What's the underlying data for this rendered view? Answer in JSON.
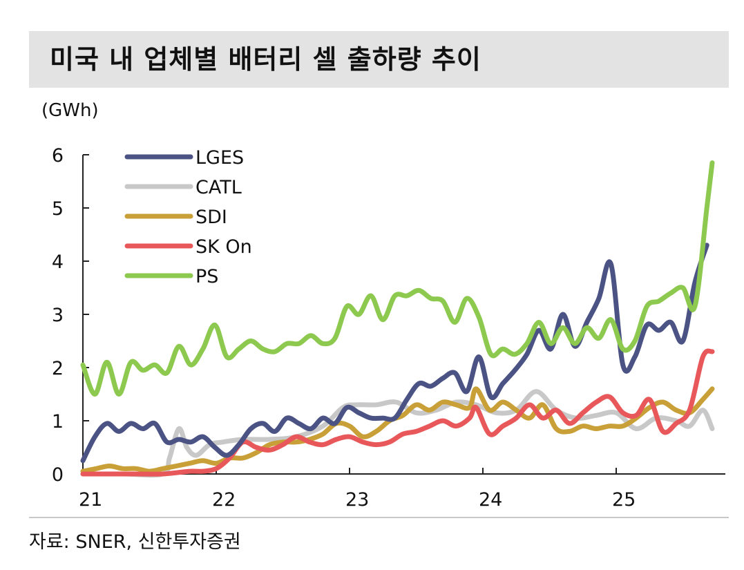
{
  "header": {
    "title": "미국 내 업체별 배터리 셀 출하량 추이"
  },
  "footer": {
    "source": "자료: SNER, 신한투자증권"
  },
  "chart_data": {
    "type": "line",
    "title": "미국 내 업체별 배터리 셀 출하량 추이",
    "unit_label": "(GWh)",
    "xlabel": "",
    "ylabel": "(GWh)",
    "ylim": [
      0,
      6
    ],
    "yticks": [
      "0",
      "1",
      "2",
      "3",
      "4",
      "5",
      "6"
    ],
    "xlim": [
      21,
      25.85
    ],
    "xticks": [
      "21",
      "22",
      "23",
      "24",
      "25"
    ],
    "grid": false,
    "legend_position": "top-left",
    "colors": {
      "LGES": "#4a5384",
      "CATL": "#c8c8c8",
      "SDI": "#c9a038",
      "SK On": "#e8585a",
      "PS": "#8cc94e"
    },
    "series": [
      {
        "name": "LGES",
        "x": [
          21.0,
          21.09,
          21.18,
          21.27,
          21.36,
          21.45,
          21.54,
          21.63,
          21.72,
          21.81,
          21.9,
          21.99,
          22.08,
          22.17,
          22.26,
          22.35,
          22.44,
          22.53,
          22.62,
          22.71,
          22.8,
          22.89,
          22.98,
          23.07,
          23.16,
          23.25,
          23.34,
          23.43,
          23.52,
          23.61,
          23.7,
          23.79,
          23.88,
          23.97,
          24.06,
          24.15,
          24.24,
          24.33,
          24.42,
          24.51,
          24.6,
          24.69,
          24.78,
          24.87,
          24.96,
          25.05,
          25.14,
          25.23,
          25.32,
          25.41,
          25.5,
          25.59,
          25.68
        ],
        "values": [
          0.25,
          0.7,
          0.95,
          0.8,
          0.95,
          0.85,
          0.95,
          0.6,
          0.65,
          0.6,
          0.7,
          0.5,
          0.35,
          0.55,
          0.85,
          0.95,
          0.8,
          1.05,
          0.95,
          0.85,
          1.05,
          0.95,
          1.25,
          1.15,
          1.05,
          1.05,
          1.05,
          1.4,
          1.7,
          1.65,
          1.8,
          1.9,
          1.55,
          2.2,
          1.45,
          1.7,
          1.95,
          2.25,
          2.7,
          2.35,
          3.0,
          2.4,
          2.85,
          3.3,
          3.95,
          2.05,
          2.2,
          2.8,
          2.7,
          2.85,
          2.5,
          3.6,
          4.3
        ]
      },
      {
        "name": "CATL",
        "x": [
          21.0,
          21.3,
          21.6,
          21.65,
          21.72,
          21.78,
          21.85,
          21.95,
          22.05,
          22.2,
          22.4,
          22.6,
          22.8,
          22.95,
          23.05,
          23.2,
          23.35,
          23.5,
          23.65,
          23.8,
          23.95,
          24.1,
          24.25,
          24.4,
          24.55,
          24.7,
          24.85,
          25.0,
          25.15,
          25.3,
          25.45,
          25.55,
          25.65,
          25.72
        ],
        "values": [
          0.0,
          0.0,
          0.0,
          0.3,
          0.85,
          0.5,
          0.35,
          0.55,
          0.6,
          0.65,
          0.65,
          0.7,
          0.9,
          1.25,
          1.3,
          1.3,
          1.35,
          1.15,
          1.2,
          1.35,
          1.3,
          1.15,
          1.2,
          1.55,
          1.2,
          1.05,
          1.1,
          1.15,
          0.85,
          1.05,
          1.0,
          0.9,
          1.2,
          0.85
        ]
      },
      {
        "name": "SDI",
        "x": [
          21.0,
          21.1,
          21.2,
          21.3,
          21.4,
          21.5,
          21.6,
          21.7,
          21.8,
          21.9,
          22.0,
          22.1,
          22.2,
          22.3,
          22.4,
          22.5,
          22.6,
          22.7,
          22.8,
          22.9,
          23.0,
          23.1,
          23.2,
          23.3,
          23.4,
          23.5,
          23.6,
          23.7,
          23.8,
          23.9,
          23.95,
          24.05,
          24.15,
          24.25,
          24.35,
          24.45,
          24.55,
          24.65,
          24.75,
          24.85,
          24.95,
          25.05,
          25.15,
          25.25,
          25.35,
          25.45,
          25.55,
          25.65,
          25.72
        ],
        "values": [
          0.05,
          0.1,
          0.15,
          0.1,
          0.1,
          0.05,
          0.1,
          0.15,
          0.2,
          0.25,
          0.2,
          0.3,
          0.3,
          0.4,
          0.55,
          0.6,
          0.6,
          0.65,
          0.75,
          0.95,
          0.9,
          0.7,
          0.8,
          1.0,
          1.1,
          1.3,
          1.2,
          1.35,
          1.3,
          1.25,
          1.6,
          1.2,
          1.35,
          1.2,
          1.05,
          1.3,
          0.85,
          0.8,
          0.9,
          0.85,
          0.9,
          0.9,
          1.05,
          1.25,
          1.35,
          1.2,
          1.15,
          1.4,
          1.6
        ]
      },
      {
        "name": "SK On",
        "x": [
          21.0,
          21.2,
          21.4,
          21.6,
          21.8,
          21.9,
          22.0,
          22.1,
          22.2,
          22.3,
          22.4,
          22.5,
          22.6,
          22.7,
          22.8,
          22.9,
          23.0,
          23.1,
          23.2,
          23.3,
          23.4,
          23.5,
          23.6,
          23.7,
          23.8,
          23.9,
          23.95,
          24.05,
          24.15,
          24.25,
          24.35,
          24.45,
          24.55,
          24.65,
          24.75,
          24.85,
          24.95,
          25.05,
          25.15,
          25.25,
          25.35,
          25.45,
          25.55,
          25.65,
          25.72
        ],
        "values": [
          0.0,
          0.0,
          0.0,
          0.0,
          0.05,
          0.05,
          0.1,
          0.3,
          0.6,
          0.5,
          0.45,
          0.55,
          0.7,
          0.6,
          0.55,
          0.65,
          0.7,
          0.6,
          0.55,
          0.6,
          0.75,
          0.8,
          0.9,
          1.0,
          0.9,
          1.05,
          1.25,
          0.75,
          0.9,
          1.05,
          1.3,
          1.05,
          1.2,
          0.95,
          1.15,
          1.35,
          1.45,
          1.15,
          1.1,
          1.4,
          0.8,
          0.95,
          1.2,
          2.2,
          2.3
        ]
      },
      {
        "name": "PS",
        "x": [
          21.0,
          21.09,
          21.18,
          21.27,
          21.36,
          21.45,
          21.54,
          21.63,
          21.72,
          21.81,
          21.9,
          21.99,
          22.08,
          22.17,
          22.26,
          22.35,
          22.44,
          22.53,
          22.62,
          22.71,
          22.8,
          22.89,
          22.98,
          23.07,
          23.16,
          23.25,
          23.34,
          23.43,
          23.52,
          23.61,
          23.7,
          23.79,
          23.88,
          23.97,
          24.06,
          24.15,
          24.24,
          24.33,
          24.42,
          24.51,
          24.6,
          24.69,
          24.78,
          24.87,
          24.96,
          25.05,
          25.14,
          25.23,
          25.32,
          25.41,
          25.5,
          25.59,
          25.68,
          25.72
        ],
        "values": [
          2.05,
          1.5,
          2.1,
          1.5,
          2.1,
          1.95,
          2.05,
          1.9,
          2.4,
          2.05,
          2.35,
          2.8,
          2.2,
          2.35,
          2.5,
          2.35,
          2.3,
          2.45,
          2.45,
          2.6,
          2.45,
          2.55,
          3.15,
          3.0,
          3.35,
          2.9,
          3.35,
          3.35,
          3.45,
          3.3,
          3.25,
          2.85,
          3.3,
          2.95,
          2.25,
          2.35,
          2.25,
          2.45,
          2.85,
          2.45,
          2.75,
          2.45,
          2.75,
          2.55,
          2.9,
          2.35,
          2.5,
          3.15,
          3.25,
          3.4,
          3.5,
          3.15,
          5.0,
          5.85
        ]
      }
    ]
  }
}
